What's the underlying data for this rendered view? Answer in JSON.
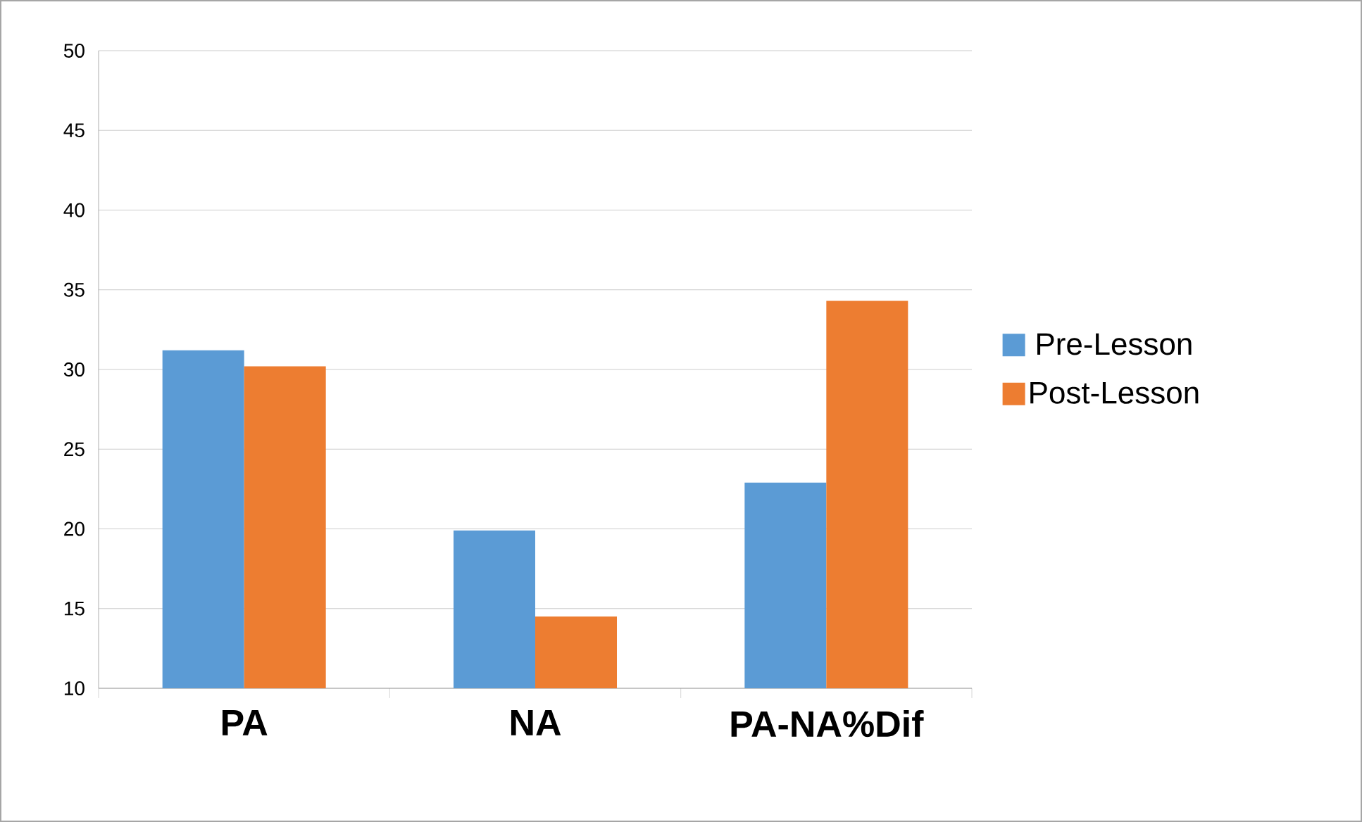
{
  "chart_data": {
    "type": "bar",
    "categories": [
      "PA",
      "NA",
      "PA-NA%Dif"
    ],
    "series": [
      {
        "name": "Pre-Lesson",
        "color": "#5b9bd5",
        "values": [
          31.2,
          19.9,
          22.9
        ]
      },
      {
        "name": "Post-Lesson",
        "color": "#ed7d31",
        "values": [
          30.2,
          14.5,
          34.3
        ]
      }
    ],
    "ylim": [
      10,
      50
    ],
    "yticks": [
      10,
      15,
      20,
      25,
      30,
      35,
      40,
      45,
      50
    ],
    "grid": "y",
    "legend": "right"
  }
}
